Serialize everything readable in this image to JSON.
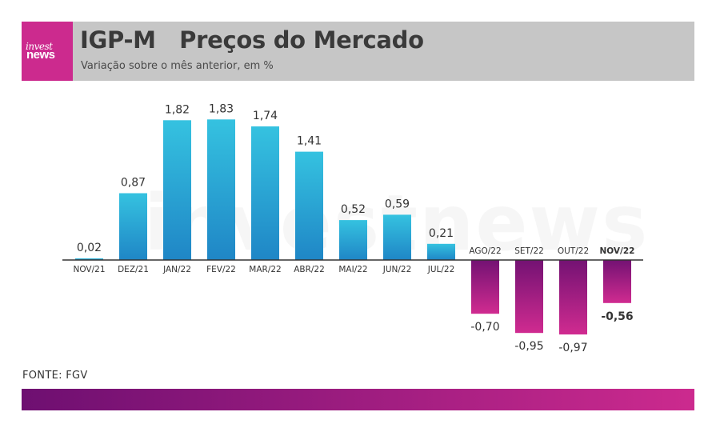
{
  "logo": {
    "top_text": "invest",
    "bottom_text": "news"
  },
  "header": {
    "title": "IGP-M   Preços do Mercado",
    "subtitle": "Variação sobre o mês anterior, em %"
  },
  "watermark": "investnews",
  "source": "FONTE: FGV",
  "colors": {
    "positive_top": "#35c2e0",
    "positive_bottom": "#1f86c6",
    "negative_top": "#731273",
    "negative_bottom": "#d02b90",
    "header_bg": "#c6c6c6",
    "logo_bg": "#cc2a8e"
  },
  "chart_data": {
    "type": "bar",
    "categories": [
      "NOV/21",
      "DEZ/21",
      "JAN/22",
      "FEV/22",
      "MAR/22",
      "ABR/22",
      "MAI/22",
      "JUN/22",
      "JUL/22",
      "AGO/22",
      "SET/22",
      "OUT/22",
      "NOV/22"
    ],
    "values": [
      0.02,
      0.87,
      1.82,
      1.83,
      1.74,
      1.41,
      0.52,
      0.59,
      0.21,
      -0.7,
      -0.95,
      -0.97,
      -0.56
    ],
    "value_labels": [
      "0,02",
      "0,87",
      "1,82",
      "1,83",
      "1,74",
      "1,41",
      "0,52",
      "0,59",
      "0,21",
      "-0,70",
      "-0,95",
      "-0,97",
      "-0,56"
    ],
    "highlight": "NOV/22",
    "ylim": [
      -0.97,
      1.83
    ],
    "grid": false,
    "legend": "none"
  }
}
